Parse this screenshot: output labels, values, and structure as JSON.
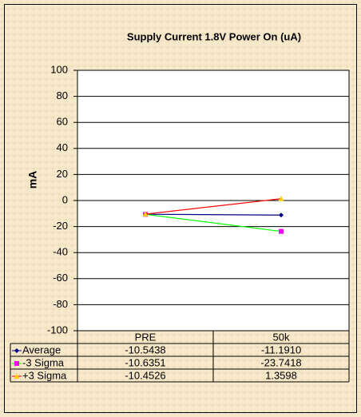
{
  "chart_data": {
    "type": "line",
    "title": "Supply Current 1.8V Power On (uA)",
    "y_label": "mA",
    "categories": [
      "PRE",
      "50k"
    ],
    "series": [
      {
        "name": "Average",
        "color": "#000080",
        "marker_color": "#000080",
        "marker": "diamond",
        "values": [
          -10.5438,
          -11.191
        ],
        "value_labels": [
          "-10.5438",
          "-11.1910"
        ]
      },
      {
        "name": "-3 Sigma",
        "color": "#00ff00",
        "marker_color": "#ff00ff",
        "marker": "square",
        "values": [
          -10.6351,
          -23.7418
        ],
        "value_labels": [
          "-10.6351",
          "-23.7418"
        ]
      },
      {
        "name": "+3 Sigma",
        "color": "#ff0000",
        "marker_color": "#ffcc00",
        "marker": "triangle",
        "values": [
          -10.4526,
          1.3598
        ],
        "value_labels": [
          "-10.4526",
          "1.3598"
        ]
      }
    ],
    "ylim": [
      -100,
      100
    ],
    "yticks": [
      -100,
      -80,
      -60,
      -40,
      -20,
      0,
      20,
      40,
      60,
      80,
      100
    ],
    "grid": true
  }
}
